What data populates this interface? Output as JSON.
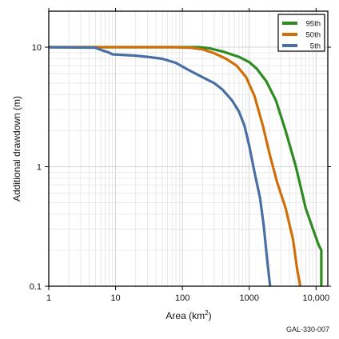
{
  "chart_data": {
    "type": "line",
    "xlabel": "Area (km",
    "xlabel_sup": "2",
    "xlabel_close": ")",
    "ylabel": "Additional drawdown (m)",
    "xscale": "log",
    "yscale": "log",
    "xlim": [
      1,
      15000
    ],
    "ylim": [
      0.1,
      20
    ],
    "grid": true,
    "legend_position": "top-right",
    "x_ticks": [
      {
        "value": 1,
        "label": "1"
      },
      {
        "value": 10,
        "label": "10"
      },
      {
        "value": 100,
        "label": "100"
      },
      {
        "value": 1000,
        "label": "1000"
      },
      {
        "value": 10000,
        "label": "10,000"
      }
    ],
    "y_ticks": [
      {
        "value": 0.1,
        "label": "0.1"
      },
      {
        "value": 1,
        "label": "1"
      },
      {
        "value": 10,
        "label": "10"
      }
    ],
    "series": [
      {
        "name": "95th",
        "color": "#2e8b22",
        "points": [
          [
            1,
            10
          ],
          [
            100,
            10
          ],
          [
            180,
            10
          ],
          [
            250,
            9.8
          ],
          [
            400,
            9.2
          ],
          [
            700,
            8.3
          ],
          [
            1000,
            7.5
          ],
          [
            1300,
            6.6
          ],
          [
            1800,
            5.2
          ],
          [
            2500,
            3.6
          ],
          [
            3500,
            2.0
          ],
          [
            5000,
            1.0
          ],
          [
            7000,
            0.45
          ],
          [
            9000,
            0.3
          ],
          [
            11000,
            0.22
          ],
          [
            12000,
            0.2
          ],
          [
            12000,
            0.1
          ]
        ]
      },
      {
        "name": "50th",
        "color": "#d06f0a",
        "points": [
          [
            1,
            10
          ],
          [
            5,
            10
          ],
          [
            70,
            10
          ],
          [
            130,
            9.9
          ],
          [
            200,
            9.6
          ],
          [
            300,
            8.9
          ],
          [
            450,
            8.0
          ],
          [
            650,
            7.0
          ],
          [
            900,
            5.6
          ],
          [
            1200,
            3.9
          ],
          [
            1600,
            2.2
          ],
          [
            2000,
            1.3
          ],
          [
            2600,
            0.75
          ],
          [
            3500,
            0.45
          ],
          [
            4500,
            0.25
          ],
          [
            5200,
            0.14
          ],
          [
            5800,
            0.1
          ]
        ]
      },
      {
        "name": "5th",
        "color": "#4a6fa5",
        "points": [
          [
            1,
            10
          ],
          [
            5,
            9.9
          ],
          [
            6,
            9.5
          ],
          [
            8,
            9.0
          ],
          [
            9,
            8.7
          ],
          [
            20,
            8.5
          ],
          [
            30,
            8.3
          ],
          [
            50,
            8.0
          ],
          [
            80,
            7.4
          ],
          [
            120,
            6.5
          ],
          [
            200,
            5.6
          ],
          [
            300,
            5.0
          ],
          [
            400,
            4.4
          ],
          [
            550,
            3.6
          ],
          [
            700,
            2.9
          ],
          [
            850,
            2.2
          ],
          [
            1000,
            1.5
          ],
          [
            1200,
            0.9
          ],
          [
            1450,
            0.55
          ],
          [
            1650,
            0.32
          ],
          [
            1850,
            0.17
          ],
          [
            2050,
            0.1
          ]
        ]
      }
    ]
  },
  "figure_code": "GAL-330-007"
}
